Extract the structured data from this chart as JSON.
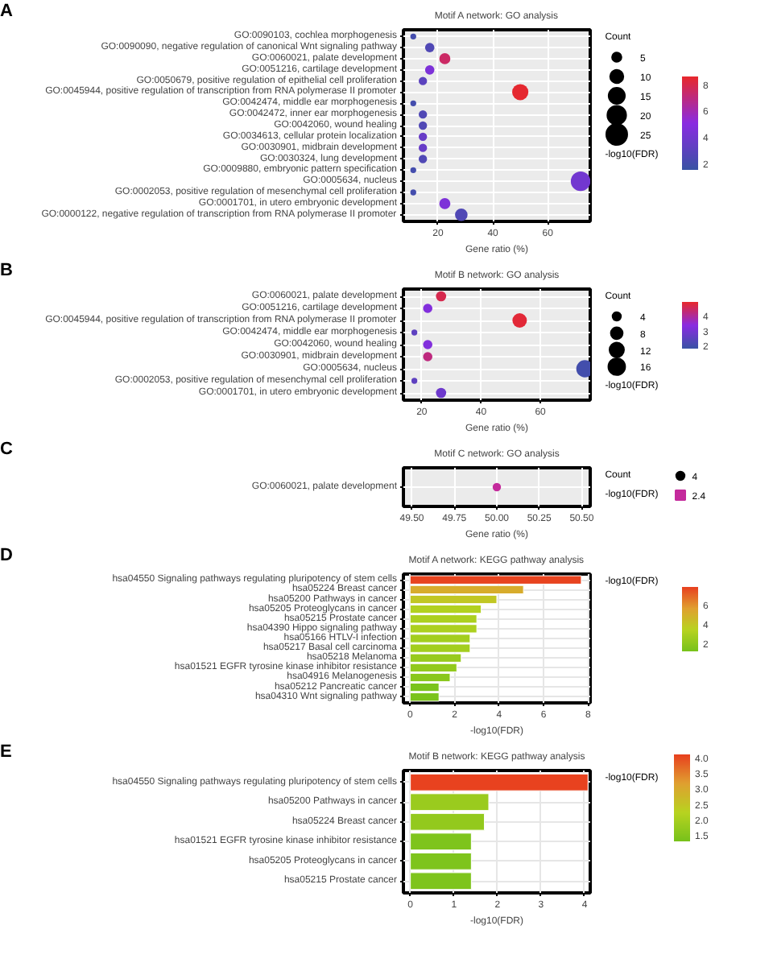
{
  "chart_data": [
    {
      "type": "bubble",
      "orientation": "horizontal",
      "annotations": [
        "A"
      ],
      "title": "Motif A network: GO analysis",
      "xlabel": "Gene ratio (%)",
      "legend_title": "Count",
      "clabel": "-log10(FDR)",
      "categories": [
        "GO:0090103, cochlea morphogenesis",
        "GO:0090090, negative regulation of canonical Wnt signaling pathway",
        "GO:0060021, palate development",
        "GO:0051216, cartilage development",
        "GO:0050679, positive regulation of epithelial cell proliferation",
        "GO:0045944, positive regulation of transcription from RNA polymerase II promoter",
        "GO:0042474, middle ear morphogenesis",
        "GO:0042472, inner ear morphogenesis",
        "GO:0042060, wound healing",
        "GO:0034613, cellular protein localization",
        "GO:0030901, midbrain development",
        "GO:0030324, lung development",
        "GO:0009880, embryonic pattern specification",
        "GO:0005634, nucleus",
        "GO:0002053, positive regulation of mesenchymal cell proliferation",
        "GO:0001701, in utero embryonic development",
        "GO:0000122, negative regulation of transcription from RNA polymerase II promoter"
      ],
      "values": [
        11,
        17,
        22.5,
        17,
        14.5,
        50,
        11,
        14.5,
        14.5,
        14.5,
        14.5,
        14.5,
        11,
        72,
        11,
        22.5,
        28.5
      ],
      "sizes": [
        2,
        5,
        7,
        5,
        4,
        15,
        2,
        4,
        4,
        4,
        4,
        4,
        2,
        22,
        2,
        7,
        9
      ],
      "cvalues": [
        2,
        2.5,
        7.5,
        4.5,
        3,
        8.5,
        2,
        2.5,
        2.5,
        3.5,
        3.5,
        2.5,
        2,
        4,
        2,
        4.5,
        2.5
      ],
      "size_legend": [
        5,
        10,
        15,
        20,
        25
      ],
      "clim": [
        1.5,
        8.6
      ],
      "cticks": [
        2,
        4,
        6,
        8
      ],
      "xlim": [
        7.4,
        75.5
      ],
      "xticks": [
        20,
        40,
        60
      ],
      "grid": true
    },
    {
      "type": "bubble",
      "orientation": "horizontal",
      "annotations": [
        "B"
      ],
      "title": "Motif B network: GO analysis",
      "xlabel": "Gene ratio (%)",
      "legend_title": "Count",
      "clabel": "-log10(FDR)",
      "categories": [
        "GO:0060021, palate development",
        "GO:0051216, cartilage development",
        "GO:0045944, positive regulation of transcription from RNA polymerase II promoter",
        "GO:0042474, middle ear morphogenesis",
        "GO:0042060, wound healing",
        "GO:0030901, midbrain development",
        "GO:0005634, nucleus",
        "GO:0002053, positive regulation of mesenchymal cell proliferation",
        "GO:0001701, in utero embryonic development"
      ],
      "values": [
        26.5,
        22,
        53,
        17.5,
        22,
        22,
        75,
        17.5,
        26.5
      ],
      "sizes": [
        6,
        5,
        12,
        2,
        5,
        5,
        17,
        2,
        6
      ],
      "cvalues": [
        4.6,
        3.2,
        4.8,
        2.5,
        3.2,
        4.2,
        2,
        2.5,
        2.8
      ],
      "size_legend": [
        4,
        8,
        12,
        16
      ],
      "clim": [
        1.8,
        4.9
      ],
      "cticks": [
        2,
        3,
        4
      ],
      "xlim": [
        13.8,
        76.8
      ],
      "xticks": [
        20,
        40,
        60
      ],
      "grid": true
    },
    {
      "type": "bubble",
      "orientation": "horizontal",
      "annotations": [
        "C"
      ],
      "title": "Motif C network: GO analysis",
      "xlabel": "Gene ratio (%)",
      "legend_title": "Count",
      "clabel": "-log10(FDR)",
      "categories": [
        "GO:0060021, palate development"
      ],
      "series": [
        {
          "name": "2.4",
          "color": "#c42a9c",
          "values": [
            50
          ],
          "sizes": [
            4
          ]
        }
      ],
      "size_legend": [
        4
      ],
      "xlim": [
        49.45,
        50.55
      ],
      "xticks": [
        {
          "value": 49.5,
          "label": "49.50"
        },
        {
          "value": 49.75,
          "label": "49.75"
        },
        {
          "value": 50,
          "label": "50.00"
        },
        {
          "value": 50.25,
          "label": "50.25"
        },
        {
          "value": 50.5,
          "label": "50.50"
        }
      ],
      "grid": true
    },
    {
      "type": "bar",
      "orientation": "horizontal",
      "annotations": [
        "D"
      ],
      "title": "Motif A network: KEGG pathway analysis",
      "xlabel": "-log10(FDR)",
      "clabel": "-log10(FDR)",
      "categories": [
        "hsa04550 Signaling pathways regulating pluripotency of stem cells",
        "hsa05224 Breast cancer",
        "hsa05200 Pathways in cancer",
        "hsa05205 Proteoglycans in cancer",
        "hsa05215 Prostate cancer",
        "hsa04390 Hippo signaling pathway",
        "hsa05166 HTLV-I infection",
        "hsa05217 Basal cell carcinoma",
        "hsa05218 Melanoma",
        "hsa01521 EGFR tyrosine kinase inhibitor resistance",
        "hsa04916 Melanogenesis",
        "hsa05212 Pancreatic cancer",
        "hsa04310 Wnt signaling pathway"
      ],
      "values": [
        7.7,
        5.1,
        3.9,
        3.2,
        3,
        3,
        2.7,
        2.7,
        2.3,
        2.1,
        1.8,
        1.3,
        1.3
      ],
      "clim": [
        1.2,
        7.8
      ],
      "cticks": [
        2,
        4,
        6
      ],
      "xlim": [
        -0.3,
        8.1
      ],
      "xticks": [
        0,
        2,
        4,
        6,
        8
      ],
      "grid": true
    },
    {
      "type": "bar",
      "orientation": "horizontal",
      "annotations": [
        "E"
      ],
      "title": "Motif B network: KEGG pathway analysis",
      "xlabel": "-log10(FDR)",
      "clabel": "-log10(FDR)",
      "categories": [
        "hsa04550 Signaling pathways regulating pluripotency of stem cells",
        "hsa05200 Pathways in cancer",
        "hsa05224 Breast cancer",
        "hsa01521 EGFR tyrosine kinase inhibitor resistance",
        "hsa05205 Proteoglycans in cancer",
        "hsa05215 Prostate cancer"
      ],
      "values": [
        4.08,
        1.8,
        1.7,
        1.4,
        1.4,
        1.4
      ],
      "clim": [
        1.3,
        4.1
      ],
      "cticks": [
        {
          "value": 1.5,
          "label": "1.5"
        },
        {
          "value": 2,
          "label": "2.0"
        },
        {
          "value": 2.5,
          "label": "2.5"
        },
        {
          "value": 3,
          "label": "3.0"
        },
        {
          "value": 3.5,
          "label": "3.5"
        },
        {
          "value": 4,
          "label": "4.0"
        }
      ],
      "xlim": [
        -0.16,
        4.13
      ],
      "xticks": [
        0,
        1,
        2,
        3,
        4
      ],
      "grid": true
    }
  ]
}
